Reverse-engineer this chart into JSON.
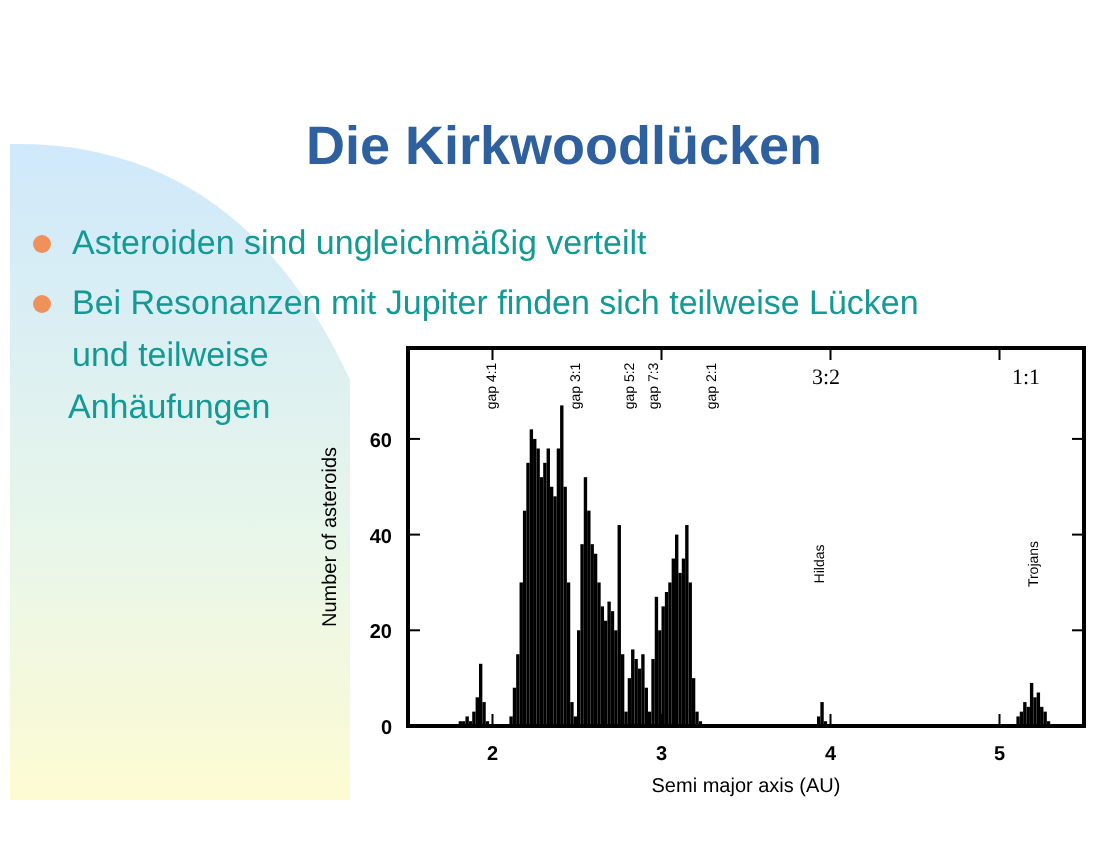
{
  "chart_data": {
    "type": "histogram",
    "title": "Die Kirkwoodlücken",
    "xlabel": "Semi major axis (AU)",
    "ylabel": "Number of asteroids",
    "bins": [
      1.8,
      1.82,
      1.84,
      1.86,
      1.88,
      1.9,
      1.92,
      1.94,
      1.96,
      1.98,
      2.0,
      2.02,
      2.04,
      2.06,
      2.08,
      2.1,
      2.12,
      2.14,
      2.16,
      2.18,
      2.2,
      2.22,
      2.24,
      2.26,
      2.28,
      2.3,
      2.32,
      2.34,
      2.36,
      2.38,
      2.4,
      2.42,
      2.44,
      2.46,
      2.48,
      2.5,
      2.52,
      2.54,
      2.56,
      2.58,
      2.6,
      2.62,
      2.64,
      2.66,
      2.68,
      2.7,
      2.72,
      2.74,
      2.76,
      2.78,
      2.8,
      2.82,
      2.84,
      2.86,
      2.88,
      2.9,
      2.92,
      2.94,
      2.96,
      2.98,
      3.0,
      3.02,
      3.04,
      3.06,
      3.08,
      3.1,
      3.12,
      3.14,
      3.16,
      3.18,
      3.2,
      3.22,
      3.24,
      3.26,
      3.28,
      3.3,
      3.32,
      3.34,
      3.36,
      3.38,
      3.4,
      3.42,
      3.44,
      3.46,
      3.48,
      3.5,
      3.52,
      3.54,
      3.56,
      3.58,
      3.6,
      3.62,
      3.64,
      3.66,
      3.68,
      3.7,
      3.72,
      3.74,
      3.76,
      3.78,
      3.8,
      3.82,
      3.84,
      3.86,
      3.88,
      3.9,
      3.92,
      3.94,
      3.96,
      3.98,
      4.0,
      4.02,
      4.04,
      4.06,
      4.08,
      4.1,
      4.12,
      4.14,
      4.16,
      4.18,
      4.2,
      4.22,
      4.24,
      4.26,
      4.28,
      4.3,
      4.32,
      4.34,
      4.36,
      4.38,
      4.4,
      4.42,
      4.44,
      4.46,
      4.48,
      4.5,
      4.52,
      4.54,
      4.56,
      4.58,
      4.6,
      4.62,
      4.64,
      4.66,
      4.68,
      4.7,
      4.72,
      4.74,
      4.76,
      4.78,
      4.8,
      4.82,
      4.84,
      4.86,
      4.88,
      4.9,
      4.92,
      4.94,
      4.96,
      4.98,
      5.0,
      5.02,
      5.04,
      5.06,
      5.08,
      5.1,
      5.12,
      5.14,
      5.16,
      5.18,
      5.2,
      5.22,
      5.24,
      5.26,
      5.28,
      5.3
    ],
    "values": [
      1,
      1,
      2,
      1,
      3,
      6,
      13,
      5,
      1,
      0,
      0,
      0,
      0,
      0,
      0,
      2,
      8,
      15,
      30,
      45,
      55,
      62,
      60,
      58,
      52,
      55,
      58,
      50,
      48,
      58,
      67,
      50,
      30,
      5,
      2,
      20,
      38,
      52,
      45,
      38,
      36,
      30,
      25,
      22,
      26,
      24,
      20,
      42,
      15,
      3,
      10,
      16,
      14,
      12,
      15,
      8,
      3,
      14,
      27,
      20,
      25,
      28,
      30,
      35,
      40,
      32,
      35,
      42,
      30,
      10,
      3,
      1,
      0,
      0,
      0,
      0,
      0,
      0,
      0,
      0,
      0,
      0,
      0,
      0,
      0,
      0,
      0,
      0,
      0,
      0,
      0,
      0,
      0,
      0,
      0,
      0,
      0,
      0,
      0,
      0,
      0,
      0,
      0,
      0,
      0,
      0,
      2,
      5,
      1,
      0,
      0,
      0,
      0,
      0,
      0,
      0,
      0,
      0,
      0,
      0,
      0,
      0,
      0,
      0,
      0,
      0,
      0,
      0,
      0,
      0,
      0,
      0,
      0,
      0,
      0,
      0,
      0,
      0,
      0,
      0,
      0,
      0,
      0,
      0,
      0,
      0,
      0,
      0,
      0,
      0,
      0,
      0,
      0,
      0,
      0,
      0,
      0,
      0,
      0,
      0,
      0,
      0,
      0,
      0,
      0,
      2,
      3,
      5,
      4,
      9,
      6,
      7,
      4,
      3,
      1
    ],
    "color": "#000000",
    "xlim": [
      1.5,
      5.5
    ],
    "ylim": [
      0,
      79
    ],
    "xticks": [
      2,
      3,
      4,
      5
    ],
    "yticks": [
      0,
      20,
      40,
      60
    ],
    "grid": false,
    "annotations": [
      "Asteroiden sind ungleichmäßig verteilt",
      "Bei Resonanzen mit Jupiter finden sich teilweise Lücken und teilweise Anhäufungen",
      "gap 4:1",
      "gap 3:1",
      "gap 5:2",
      "gap 7:3",
      "gap 2:1",
      "3:2",
      "1:1",
      "Hildas",
      "Trojans"
    ]
  }
}
